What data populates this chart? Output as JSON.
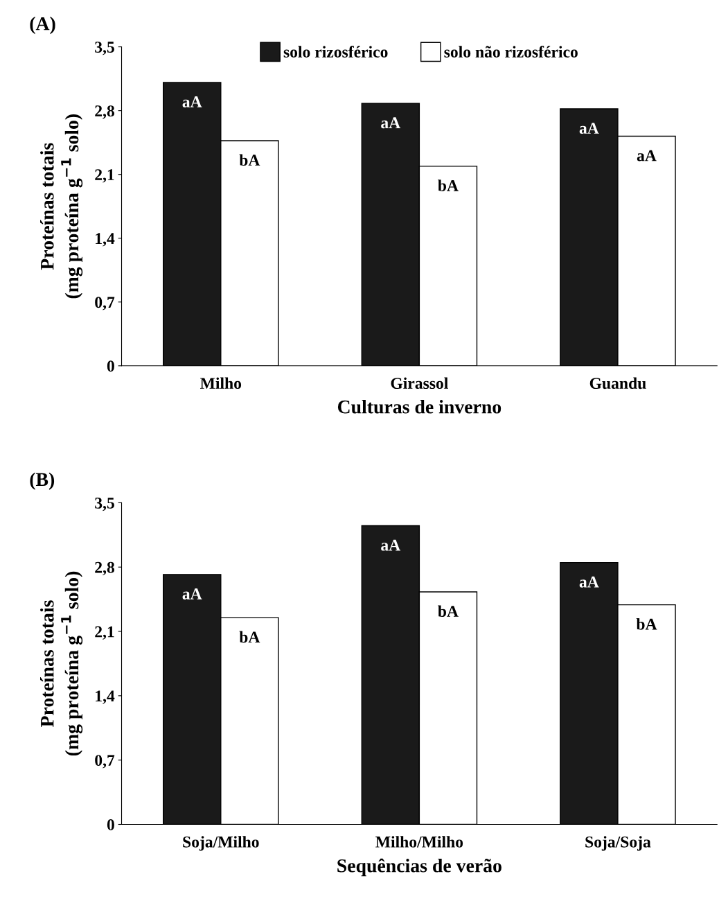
{
  "chart_data": [
    {
      "type": "bar",
      "title": "(A)",
      "xlabel": "Culturas de inverno",
      "ylabel": "Proteínas totais\n(mg proteína g$^{−1}$ solo)",
      "categories": [
        "Milho",
        "Girassol",
        "Guandu"
      ],
      "series": [
        {
          "name": "solo rizosférico",
          "color": "#1a1a1a",
          "values": [
            3.11,
            2.88,
            2.82
          ],
          "value_labels": [
            "aA",
            "aA",
            "aA"
          ]
        },
        {
          "name": "solo não rizosférico",
          "color": "#ffffff",
          "values": [
            2.47,
            2.19,
            2.52
          ],
          "value_labels": [
            "bA",
            "bA",
            "aA"
          ]
        }
      ],
      "ylim": [
        0,
        3.5
      ],
      "yticks": [
        0,
        {
          "value": 0.7,
          "label": "0,7"
        },
        {
          "value": 1.4,
          "label": "1,4"
        },
        {
          "value": 2.1,
          "label": "2,1"
        },
        {
          "value": 2.8,
          "label": "2,8"
        },
        {
          "value": 3.5,
          "label": "3,5"
        }
      ],
      "grid": false,
      "legend": "top"
    },
    {
      "type": "bar",
      "title": "(B)",
      "xlabel": "Sequências de verão",
      "ylabel": "Proteínas totais\n(mg proteína g$^{−1}$ solo)",
      "categories": [
        "Soja/Milho",
        "Milho/Milho",
        "Soja/Soja"
      ],
      "series": [
        {
          "color": "#1a1a1a",
          "values": [
            2.72,
            3.25,
            2.85
          ],
          "value_labels": [
            "aA",
            "aA",
            "aA"
          ]
        },
        {
          "color": "#ffffff",
          "values": [
            2.25,
            2.53,
            2.39
          ],
          "value_labels": [
            "bA",
            "bA",
            "bA"
          ]
        }
      ],
      "ylim": [
        0,
        3.5
      ],
      "yticks": [
        0,
        {
          "value": 0.7,
          "label": "0,7"
        },
        {
          "value": 1.4,
          "label": "1,4"
        },
        {
          "value": 2.1,
          "label": "2,1"
        },
        {
          "value": 2.8,
          "label": "2,8"
        },
        {
          "value": 3.5,
          "label": "3,5"
        }
      ],
      "grid": false,
      "legend": false
    }
  ]
}
